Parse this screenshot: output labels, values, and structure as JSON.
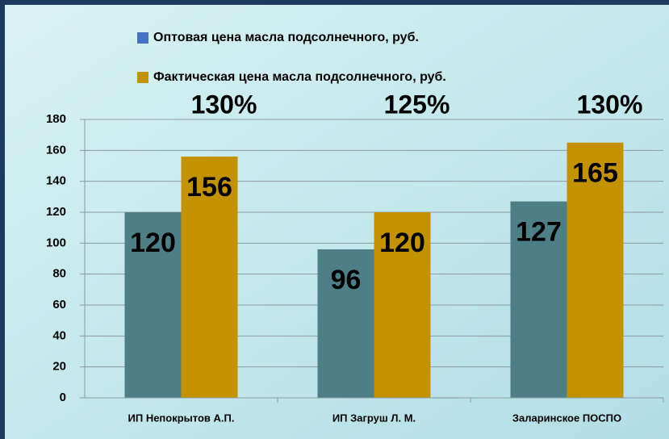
{
  "chart_data": {
    "type": "bar",
    "categories": [
      "ИП Непокрытов А.П.",
      "ИП Загруш Л. М.",
      "Заларинское ПОСПО"
    ],
    "series": [
      {
        "name": "Оптовая цена масла подсолнечного, руб.",
        "color": "#4e7f87",
        "marker_color": "#4472c4",
        "values": [
          120,
          96,
          127
        ]
      },
      {
        "name": "Фактическая цена масла подсолнечного, руб.",
        "color": "#c39200",
        "marker_color": "#c39200",
        "values": [
          156,
          120,
          165
        ]
      }
    ],
    "annotations": [
      "130%",
      "125%",
      "130%"
    ],
    "ylim": [
      0,
      180
    ],
    "yticks": [
      0,
      20,
      40,
      60,
      80,
      100,
      120,
      140,
      160,
      180
    ],
    "grid": true
  }
}
